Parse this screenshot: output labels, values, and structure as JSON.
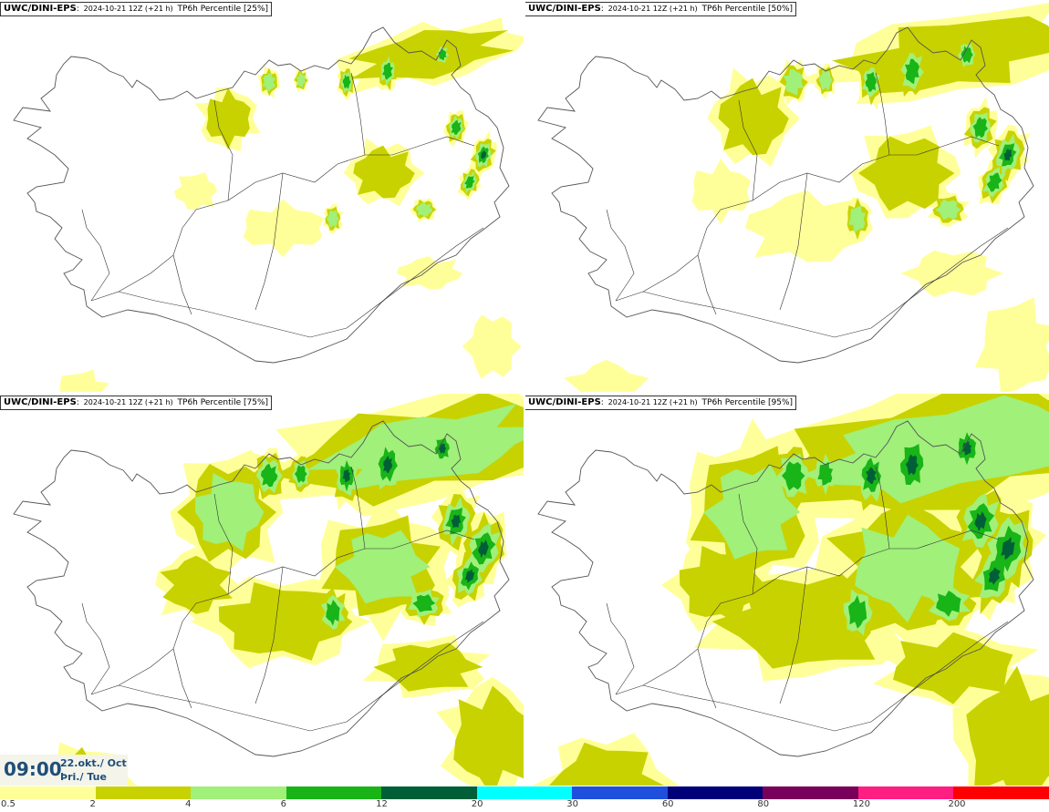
{
  "panels": [
    {
      "model": "UWC/DINI-EPS",
      "run": "2024-10-21 12Z (+21 h)",
      "field": "TP6h Percentile [25%]",
      "intensity": 0.55
    },
    {
      "model": "UWC/DINI-EPS",
      "run": "2024-10-21 12Z (+21 h)",
      "field": "TP6h Percentile [50%]",
      "intensity": 0.8
    },
    {
      "model": "UWC/DINI-EPS",
      "run": "2024-10-21 12Z (+21 h)",
      "field": "TP6h Percentile [75%]",
      "intensity": 1.05
    },
    {
      "model": "UWC/DINI-EPS",
      "run": "2024-10-21 12Z (+21 h)",
      "field": "TP6h Percentile [95%]",
      "intensity": 1.35
    }
  ],
  "valid_time": {
    "time": "09:00",
    "date": "22.okt./ Oct",
    "day": "Þri./ Tue"
  },
  "legend": {
    "ticks": [
      "0.5",
      "2",
      "4",
      "6",
      "12",
      "20",
      "30",
      "60",
      "80",
      "120",
      "200"
    ],
    "colors": [
      "#ffff99",
      "#c8d200",
      "#a0f07a",
      "#18b418",
      "#005f37",
      "#00ffff",
      "#1e50dc",
      "#000078",
      "#78005a",
      "#ff1e82",
      "#ff0000"
    ]
  }
}
